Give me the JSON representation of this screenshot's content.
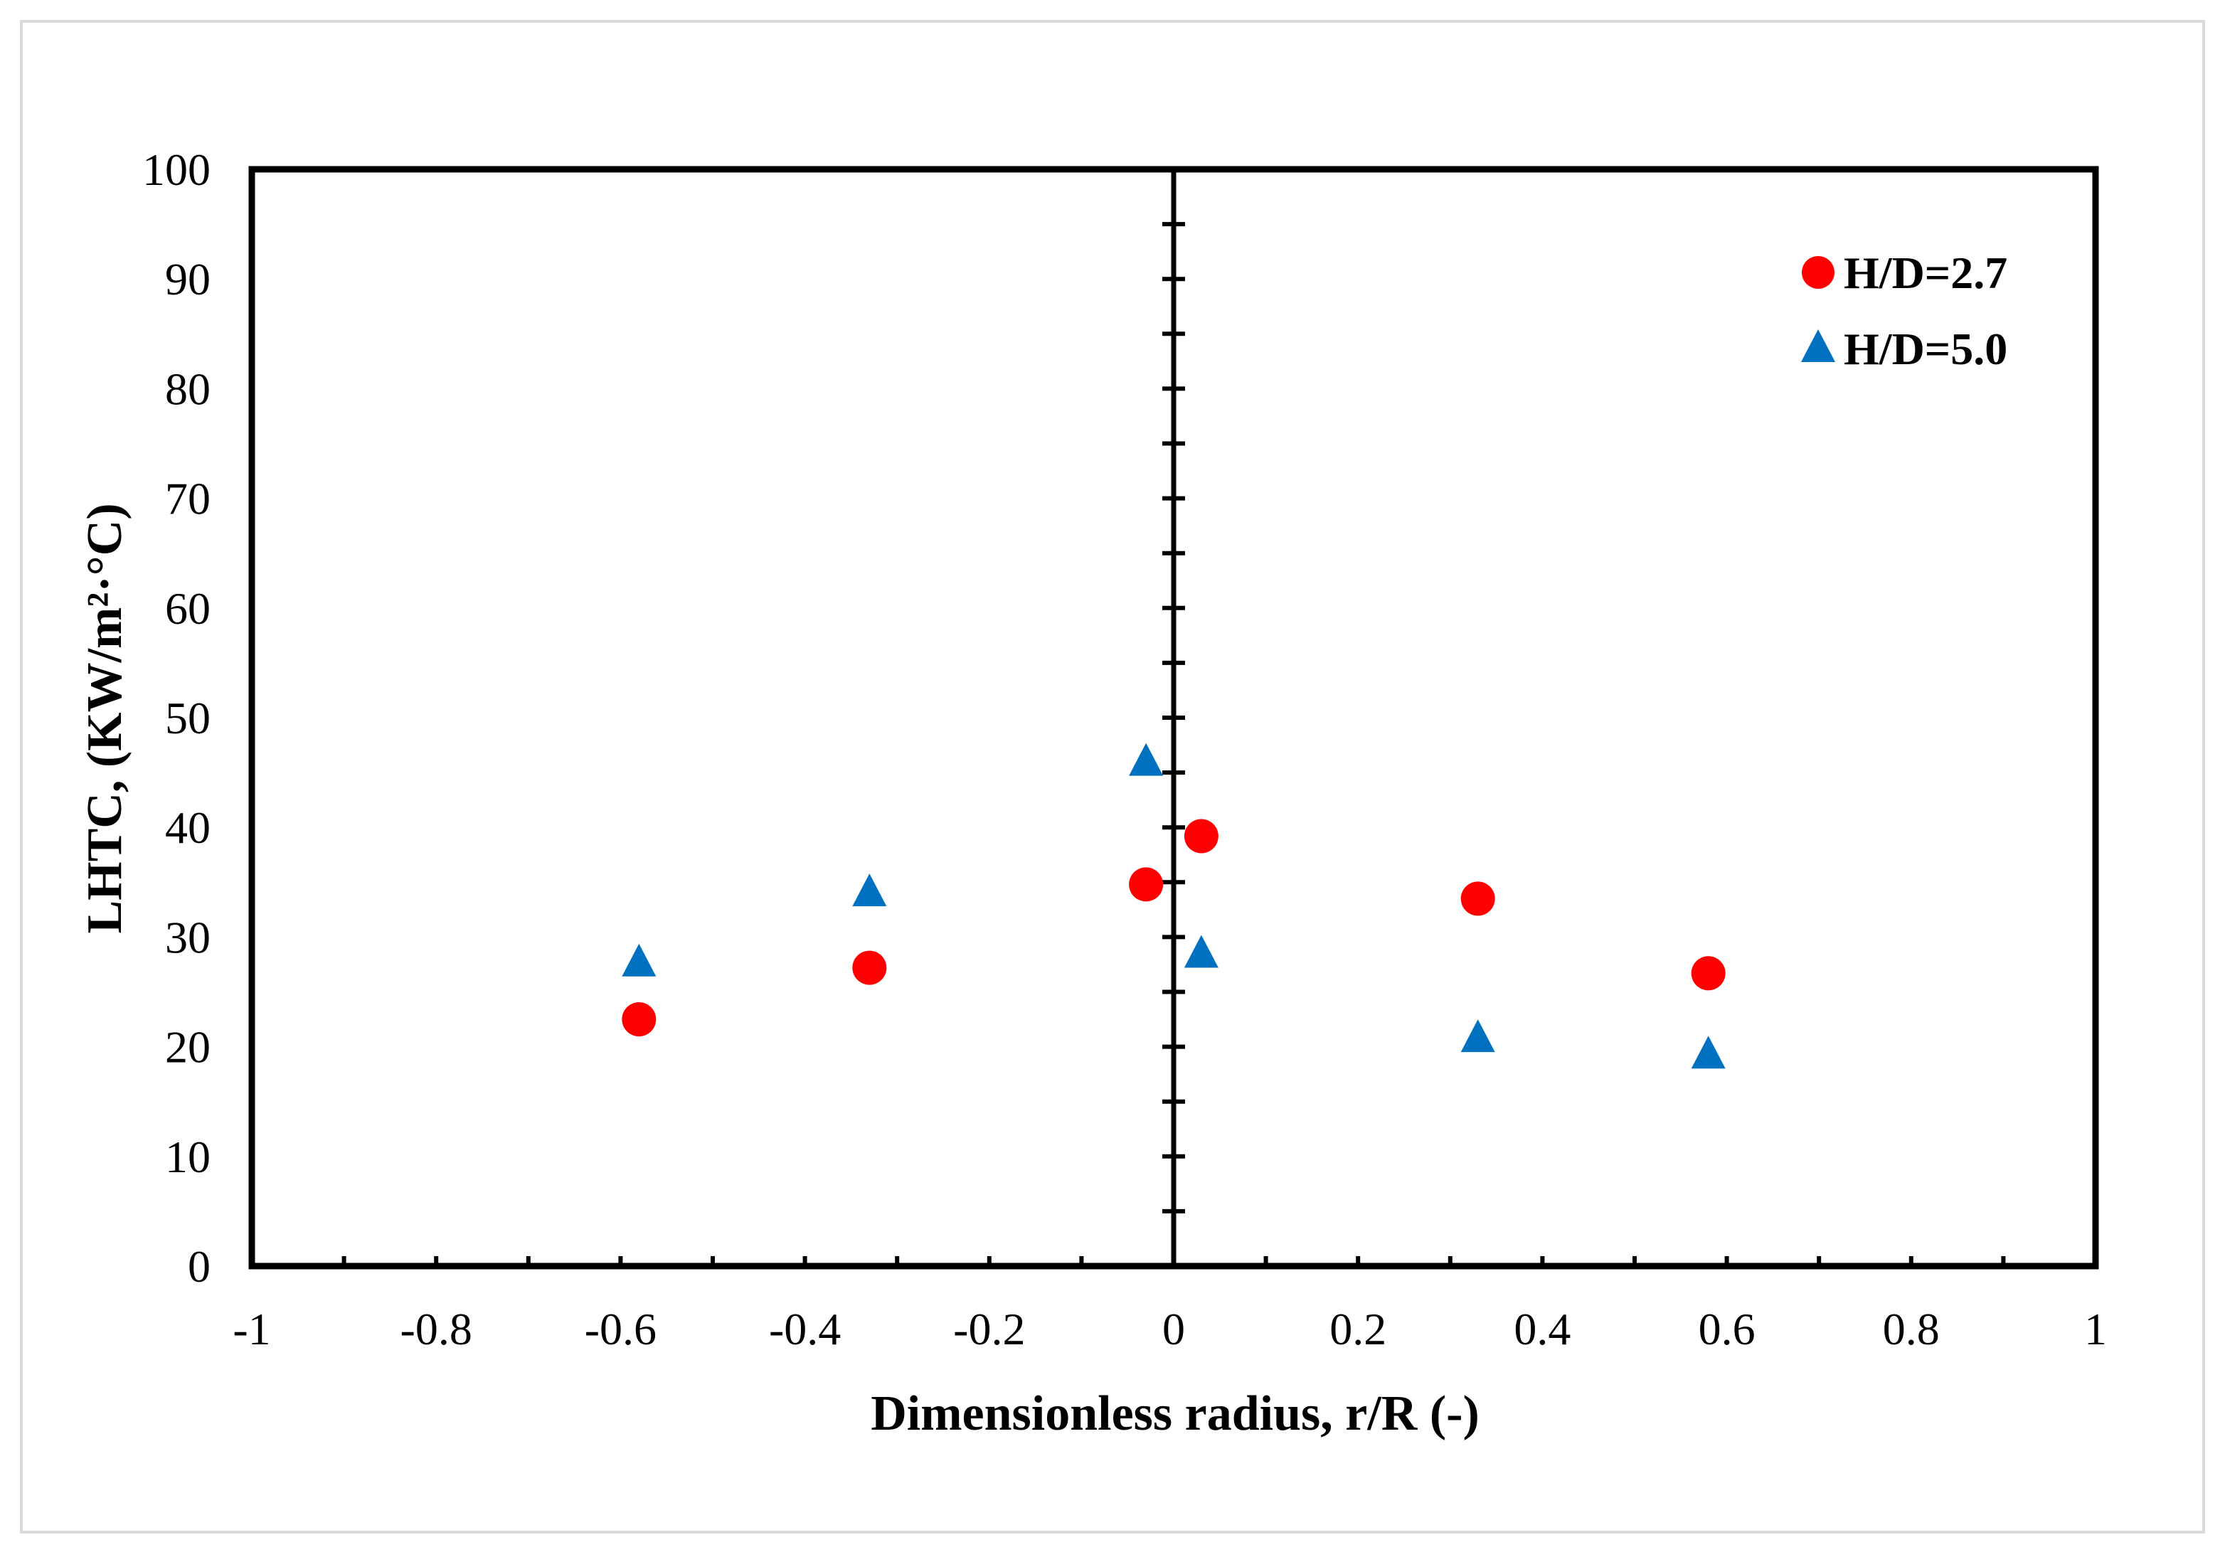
{
  "chart_data": {
    "type": "scatter",
    "title": "",
    "xlabel": "Dimensionless radius, r/R (-)",
    "ylabel": "LHTC, (KW/m²·°C)",
    "xlim": [
      -1,
      1
    ],
    "ylim": [
      0,
      100
    ],
    "x_ticks": [
      "-1",
      "-0.8",
      "-0.6",
      "-0.4",
      "-0.2",
      "0",
      "0.2",
      "0.4",
      "0.6",
      "0.8",
      "1"
    ],
    "y_ticks": [
      "0",
      "10",
      "20",
      "30",
      "40",
      "50",
      "60",
      "70",
      "80",
      "90",
      "100"
    ],
    "grid": false,
    "legend_position": "top-right",
    "series": [
      {
        "name": "H/D=2.7",
        "marker": "circle",
        "color": "#ff0000",
        "points": [
          {
            "x": -0.58,
            "y": 22.5
          },
          {
            "x": -0.33,
            "y": 27.2
          },
          {
            "x": -0.03,
            "y": 34.8
          },
          {
            "x": 0.03,
            "y": 39.2
          },
          {
            "x": 0.33,
            "y": 33.5
          },
          {
            "x": 0.58,
            "y": 26.7
          }
        ]
      },
      {
        "name": "H/D=5.0",
        "marker": "triangle",
        "color": "#0070c0",
        "points": [
          {
            "x": -0.58,
            "y": 27.9
          },
          {
            "x": -0.33,
            "y": 34.3
          },
          {
            "x": -0.03,
            "y": 46.2
          },
          {
            "x": 0.03,
            "y": 28.7
          },
          {
            "x": 0.33,
            "y": 21.0
          },
          {
            "x": 0.58,
            "y": 19.5
          }
        ]
      }
    ]
  }
}
